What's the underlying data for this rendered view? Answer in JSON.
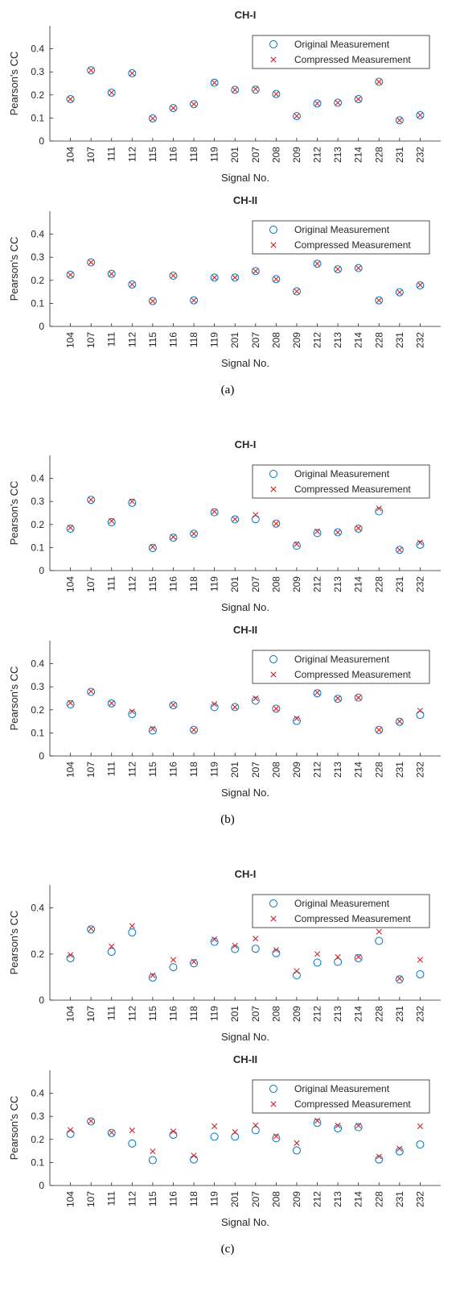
{
  "figure": {
    "colors": {
      "original": "#0072BD",
      "compressed": "#D62728",
      "axis": "#262626"
    }
  },
  "chart_data": [
    {
      "type": "scatter",
      "group": "(a)",
      "title": "CH-I",
      "xlabel": "Signal No.",
      "ylabel": "Pearson's CC",
      "categories": [
        "104",
        "107",
        "111",
        "112",
        "115",
        "116",
        "118",
        "119",
        "201",
        "207",
        "208",
        "209",
        "212",
        "213",
        "214",
        "228",
        "231",
        "232"
      ],
      "ylim": [
        0,
        0.5
      ],
      "yticks": [
        0,
        0.1,
        0.2,
        0.3,
        0.4
      ],
      "legend": "top-right",
      "grid": false,
      "series": [
        {
          "name": "Original Measurement",
          "marker": "circle",
          "values": [
            0.182,
            0.307,
            0.21,
            0.294,
            0.098,
            0.143,
            0.16,
            0.253,
            0.222,
            0.223,
            0.204,
            0.108,
            0.163,
            0.166,
            0.182,
            0.257,
            0.09,
            0.112
          ]
        },
        {
          "name": "Compressed Measurement",
          "marker": "x",
          "values": [
            0.182,
            0.307,
            0.21,
            0.294,
            0.098,
            0.143,
            0.16,
            0.253,
            0.222,
            0.226,
            0.204,
            0.108,
            0.163,
            0.166,
            0.182,
            0.257,
            0.09,
            0.112
          ]
        }
      ]
    },
    {
      "type": "scatter",
      "group": "(a)",
      "title": "CH-II",
      "xlabel": "Signal No.",
      "ylabel": "Pearson's CC",
      "categories": [
        "104",
        "107",
        "111",
        "112",
        "115",
        "116",
        "118",
        "119",
        "201",
        "207",
        "208",
        "209",
        "212",
        "213",
        "214",
        "228",
        "231",
        "232"
      ],
      "ylim": [
        0,
        0.5
      ],
      "yticks": [
        0,
        0.1,
        0.2,
        0.3,
        0.4
      ],
      "legend": "top-right",
      "grid": false,
      "series": [
        {
          "name": "Original Measurement",
          "marker": "circle",
          "values": [
            0.224,
            0.278,
            0.228,
            0.182,
            0.11,
            0.22,
            0.113,
            0.212,
            0.212,
            0.24,
            0.205,
            0.152,
            0.272,
            0.248,
            0.253,
            0.113,
            0.148,
            0.178
          ]
        },
        {
          "name": "Compressed Measurement",
          "marker": "x",
          "values": [
            0.224,
            0.278,
            0.228,
            0.182,
            0.11,
            0.22,
            0.113,
            0.212,
            0.212,
            0.24,
            0.205,
            0.152,
            0.272,
            0.248,
            0.253,
            0.113,
            0.148,
            0.18
          ]
        }
      ]
    },
    {
      "type": "scatter",
      "group": "(b)",
      "title": "CH-I",
      "xlabel": "Signal No.",
      "ylabel": "Pearson's CC",
      "categories": [
        "104",
        "107",
        "111",
        "112",
        "115",
        "116",
        "118",
        "119",
        "201",
        "207",
        "208",
        "209",
        "212",
        "213",
        "214",
        "228",
        "231",
        "232"
      ],
      "ylim": [
        0,
        0.5
      ],
      "yticks": [
        0,
        0.1,
        0.2,
        0.3,
        0.4
      ],
      "legend": "top-right",
      "grid": false,
      "series": [
        {
          "name": "Original Measurement",
          "marker": "circle",
          "values": [
            0.182,
            0.307,
            0.21,
            0.294,
            0.098,
            0.143,
            0.16,
            0.253,
            0.222,
            0.223,
            0.204,
            0.108,
            0.163,
            0.166,
            0.182,
            0.257,
            0.09,
            0.112
          ]
        },
        {
          "name": "Compressed Measurement",
          "marker": "x",
          "values": [
            0.186,
            0.308,
            0.215,
            0.3,
            0.103,
            0.146,
            0.16,
            0.256,
            0.223,
            0.242,
            0.204,
            0.115,
            0.17,
            0.166,
            0.184,
            0.27,
            0.09,
            0.122
          ]
        }
      ]
    },
    {
      "type": "scatter",
      "group": "(b)",
      "title": "CH-II",
      "xlabel": "Signal No.",
      "ylabel": "Pearson's CC",
      "categories": [
        "104",
        "107",
        "111",
        "112",
        "115",
        "116",
        "118",
        "119",
        "201",
        "207",
        "208",
        "209",
        "212",
        "213",
        "214",
        "228",
        "231",
        "232"
      ],
      "ylim": [
        0,
        0.5
      ],
      "yticks": [
        0,
        0.1,
        0.2,
        0.3,
        0.4
      ],
      "legend": "top-right",
      "grid": false,
      "series": [
        {
          "name": "Original Measurement",
          "marker": "circle",
          "values": [
            0.224,
            0.278,
            0.228,
            0.182,
            0.11,
            0.22,
            0.113,
            0.212,
            0.212,
            0.24,
            0.205,
            0.152,
            0.272,
            0.248,
            0.253,
            0.113,
            0.148,
            0.178
          ]
        },
        {
          "name": "Compressed Measurement",
          "marker": "x",
          "values": [
            0.23,
            0.28,
            0.229,
            0.193,
            0.118,
            0.222,
            0.113,
            0.225,
            0.212,
            0.25,
            0.205,
            0.163,
            0.275,
            0.25,
            0.253,
            0.113,
            0.15,
            0.197
          ]
        }
      ]
    },
    {
      "type": "scatter",
      "group": "(c)",
      "title": "CH-I",
      "xlabel": "Signal No.",
      "ylabel": "Pearson's CC",
      "categories": [
        "104",
        "107",
        "111",
        "112",
        "115",
        "116",
        "118",
        "119",
        "201",
        "207",
        "208",
        "209",
        "212",
        "213",
        "214",
        "228",
        "231",
        "232"
      ],
      "ylim": [
        0,
        0.5
      ],
      "yticks": [
        0,
        0.2,
        0.4
      ],
      "legend": "top-right",
      "grid": false,
      "series": [
        {
          "name": "Original Measurement",
          "marker": "circle",
          "values": [
            0.182,
            0.307,
            0.21,
            0.294,
            0.098,
            0.143,
            0.16,
            0.253,
            0.222,
            0.223,
            0.204,
            0.108,
            0.163,
            0.166,
            0.182,
            0.257,
            0.09,
            0.112
          ]
        },
        {
          "name": "Compressed Measurement",
          "marker": "x",
          "values": [
            0.196,
            0.31,
            0.233,
            0.322,
            0.108,
            0.175,
            0.167,
            0.264,
            0.236,
            0.267,
            0.218,
            0.126,
            0.2,
            0.187,
            0.188,
            0.297,
            0.094,
            0.175
          ]
        }
      ]
    },
    {
      "type": "scatter",
      "group": "(c)",
      "title": "CH-II",
      "xlabel": "Signal No.",
      "ylabel": "Pearson's CC",
      "categories": [
        "104",
        "107",
        "111",
        "112",
        "115",
        "116",
        "118",
        "119",
        "201",
        "207",
        "208",
        "209",
        "212",
        "213",
        "214",
        "228",
        "231",
        "232"
      ],
      "ylim": [
        0,
        0.5
      ],
      "yticks": [
        0,
        0.1,
        0.2,
        0.3,
        0.4
      ],
      "legend": "top-right",
      "grid": false,
      "series": [
        {
          "name": "Original Measurement",
          "marker": "circle",
          "values": [
            0.224,
            0.278,
            0.228,
            0.182,
            0.11,
            0.22,
            0.113,
            0.212,
            0.212,
            0.24,
            0.205,
            0.152,
            0.272,
            0.248,
            0.253,
            0.113,
            0.148,
            0.178
          ]
        },
        {
          "name": "Compressed Measurement",
          "marker": "x",
          "values": [
            0.241,
            0.28,
            0.23,
            0.239,
            0.148,
            0.235,
            0.13,
            0.257,
            0.232,
            0.261,
            0.214,
            0.184,
            0.281,
            0.26,
            0.26,
            0.126,
            0.16,
            0.257
          ]
        }
      ]
    }
  ],
  "captions": [
    "(a)",
    "(b)",
    "(c)"
  ]
}
